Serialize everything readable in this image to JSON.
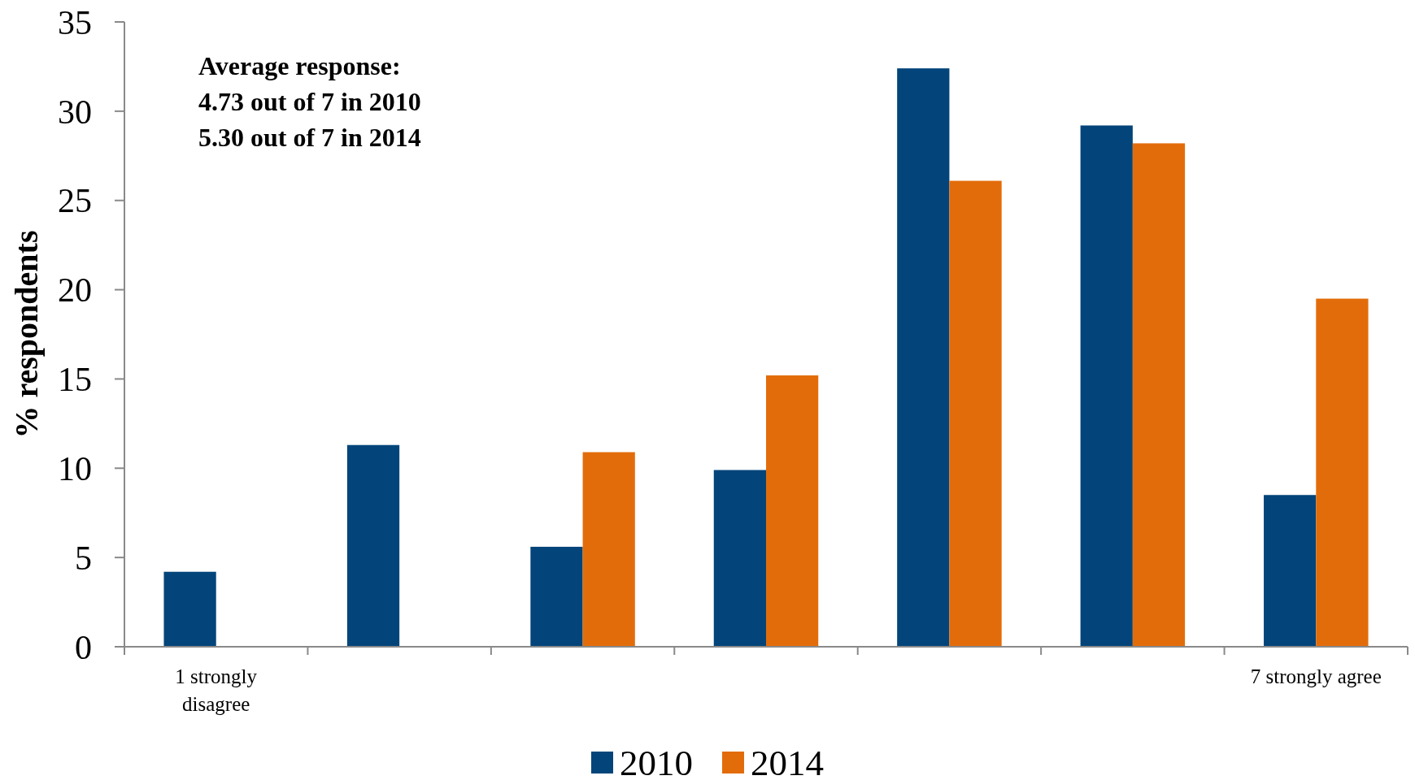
{
  "chart_data": {
    "type": "bar",
    "ylabel": "% respondents",
    "annotations": [
      "Average response:",
      "4.73 out of 7 in 2010",
      "5.30 out of 7 in 2014"
    ],
    "categories": [
      "1 strongly disagree",
      null,
      null,
      null,
      null,
      null,
      "7 strongly agree"
    ],
    "series": [
      {
        "name": "2010",
        "color": "#03457a",
        "values": [
          4.2,
          11.3,
          5.6,
          9.9,
          32.4,
          29.2,
          8.5
        ]
      },
      {
        "name": "2014",
        "color": "#e36c0a",
        "values": [
          null,
          null,
          10.9,
          15.2,
          26.1,
          28.2,
          19.5
        ]
      }
    ],
    "ylim": [
      0,
      35
    ],
    "yticks": [
      0,
      5,
      10,
      15,
      20,
      25,
      30,
      35
    ],
    "legend": "bottom"
  }
}
